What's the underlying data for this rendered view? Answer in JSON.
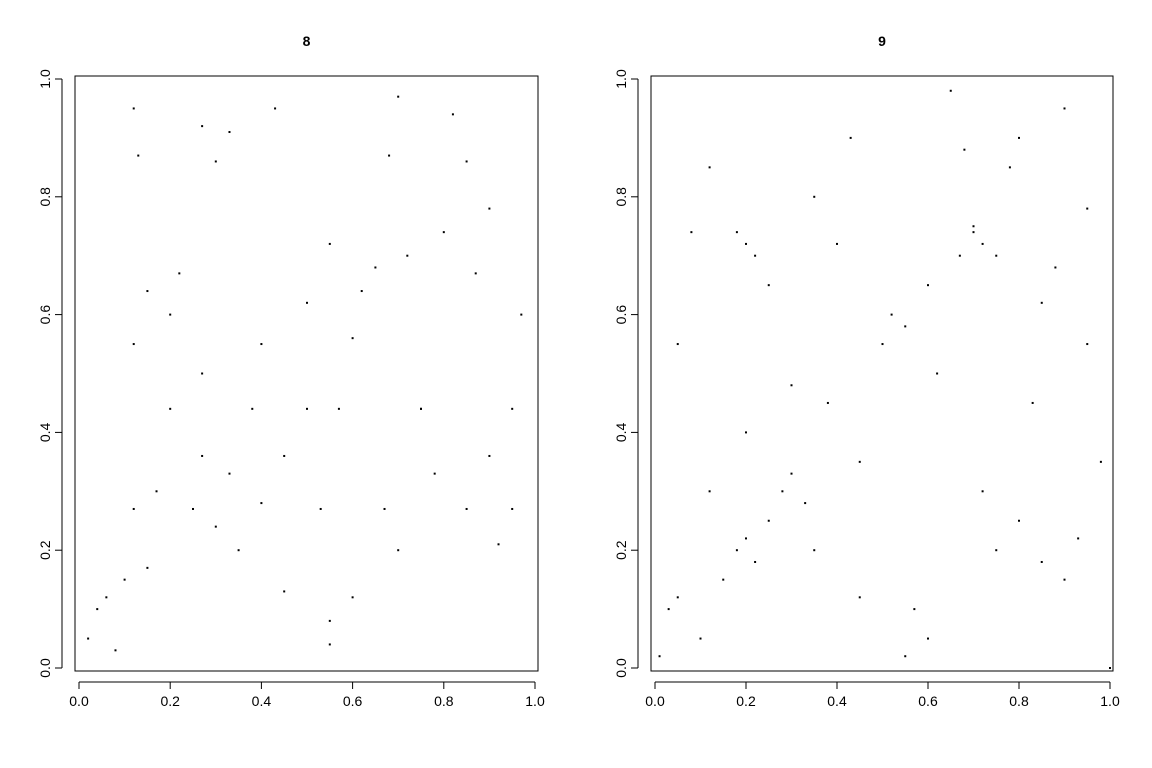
{
  "chart_data": [
    {
      "type": "scatter",
      "title": "8",
      "color": "#000000",
      "x": [
        0.02,
        0.04,
        0.06,
        0.08,
        0.1,
        0.12,
        0.12,
        0.13,
        0.15,
        0.17,
        0.2,
        0.22,
        0.25,
        0.27,
        0.27,
        0.3,
        0.33,
        0.35,
        0.38,
        0.4,
        0.43,
        0.45,
        0.5,
        0.53,
        0.55,
        0.55,
        0.57,
        0.6,
        0.62,
        0.65,
        0.67,
        0.68,
        0.7,
        0.72,
        0.75,
        0.78,
        0.8,
        0.82,
        0.85,
        0.87,
        0.9,
        0.92,
        0.95,
        0.97,
        0.12,
        0.2,
        0.3,
        0.45,
        0.55,
        0.7,
        0.85,
        0.95,
        0.27,
        0.4,
        0.6,
        0.75,
        0.9,
        0.15,
        0.33,
        0.5
      ],
      "y": [
        0.05,
        0.1,
        0.12,
        0.03,
        0.15,
        0.27,
        0.55,
        0.87,
        0.17,
        0.3,
        0.44,
        0.67,
        0.27,
        0.36,
        0.92,
        0.24,
        0.33,
        0.2,
        0.44,
        0.28,
        0.95,
        0.36,
        0.62,
        0.27,
        0.72,
        0.04,
        0.44,
        0.56,
        0.64,
        0.68,
        0.27,
        0.87,
        0.97,
        0.7,
        0.44,
        0.33,
        0.74,
        0.94,
        0.27,
        0.67,
        0.36,
        0.21,
        0.44,
        0.6,
        0.95,
        0.6,
        0.86,
        0.13,
        0.08,
        0.2,
        0.86,
        0.27,
        0.5,
        0.55,
        0.12,
        0.44,
        0.78,
        0.64,
        0.91,
        0.44
      ],
      "xlim": [
        0,
        1
      ],
      "ylim": [
        0,
        1
      ],
      "xticks": [
        {
          "value": 0,
          "label": "0.0"
        },
        0.2,
        0.4,
        0.6,
        0.8,
        {
          "value": 1,
          "label": "1.0"
        }
      ],
      "yticks": [
        {
          "value": 0,
          "label": "0.0"
        },
        0.2,
        0.4,
        0.6,
        0.8,
        {
          "value": 1,
          "label": "1.0"
        }
      ]
    },
    {
      "type": "scatter",
      "title": "9",
      "color": "#000000",
      "x": [
        0.01,
        0.03,
        0.05,
        0.08,
        0.1,
        0.12,
        0.15,
        0.18,
        0.2,
        0.22,
        0.25,
        0.28,
        0.3,
        0.33,
        0.35,
        0.38,
        0.4,
        0.43,
        0.45,
        0.5,
        0.52,
        0.55,
        0.57,
        0.6,
        0.62,
        0.65,
        0.67,
        0.7,
        0.72,
        0.75,
        0.78,
        0.8,
        0.83,
        0.85,
        0.88,
        0.9,
        0.93,
        0.95,
        0.98,
        1.0,
        0.18,
        0.2,
        0.22,
        0.7,
        0.72,
        0.75,
        0.05,
        0.55,
        0.3,
        0.85,
        0.2,
        0.68,
        0.45,
        0.95,
        0.12,
        0.6,
        0.35,
        0.8,
        0.9,
        0.25
      ],
      "y": [
        0.02,
        0.1,
        0.55,
        0.74,
        0.05,
        0.3,
        0.15,
        0.2,
        0.22,
        0.18,
        0.25,
        0.3,
        0.33,
        0.28,
        0.8,
        0.45,
        0.72,
        0.9,
        0.35,
        0.55,
        0.6,
        0.58,
        0.1,
        0.65,
        0.5,
        0.98,
        0.7,
        0.75,
        0.3,
        0.2,
        0.85,
        0.25,
        0.45,
        0.18,
        0.68,
        0.95,
        0.22,
        0.78,
        0.35,
        0.0,
        0.74,
        0.72,
        0.7,
        0.74,
        0.72,
        0.7,
        0.12,
        0.02,
        0.48,
        0.62,
        0.4,
        0.88,
        0.12,
        0.55,
        0.85,
        0.05,
        0.2,
        0.9,
        0.15,
        0.65
      ],
      "xlim": [
        0,
        1
      ],
      "ylim": [
        0,
        1
      ],
      "xticks": [
        {
          "value": 0,
          "label": "0.0"
        },
        0.2,
        0.4,
        0.6,
        0.8,
        {
          "value": 1,
          "label": "1.0"
        }
      ],
      "yticks": [
        {
          "value": 0,
          "label": "0.0"
        },
        0.2,
        0.4,
        0.6,
        0.8,
        {
          "value": 1,
          "label": "1.0"
        }
      ]
    }
  ]
}
